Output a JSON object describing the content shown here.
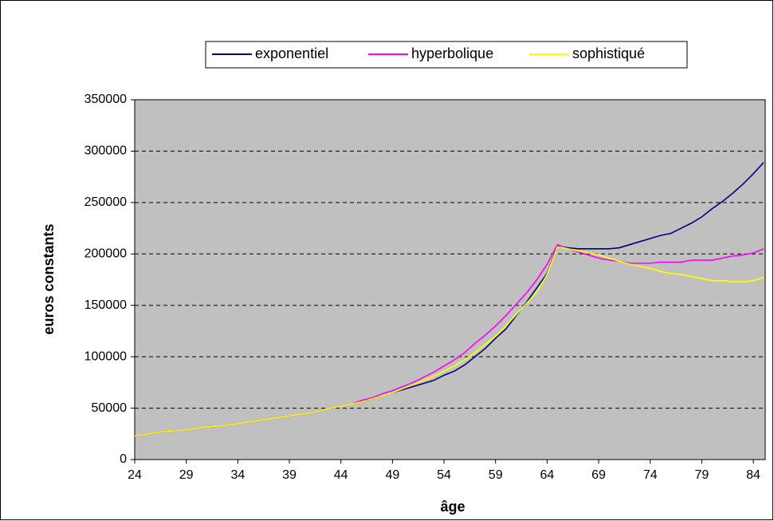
{
  "chart_data": {
    "type": "line",
    "x_label": "âge",
    "y_label": "euros constants",
    "x": [
      24,
      25,
      26,
      27,
      28,
      29,
      30,
      31,
      32,
      33,
      34,
      35,
      36,
      37,
      38,
      39,
      40,
      41,
      42,
      43,
      44,
      45,
      46,
      47,
      48,
      49,
      50,
      51,
      52,
      53,
      54,
      55,
      56,
      57,
      58,
      59,
      60,
      61,
      62,
      63,
      64,
      65,
      66,
      67,
      68,
      69,
      70,
      71,
      72,
      73,
      74,
      75,
      76,
      77,
      78,
      79,
      80,
      81,
      82,
      83,
      84,
      85
    ],
    "series": [
      {
        "name": "exponentiel",
        "color": "#000080",
        "values": [
          23000,
          24500,
          26000,
          27500,
          28000,
          29000,
          30500,
          32000,
          32500,
          33500,
          35000,
          36500,
          38000,
          39500,
          41000,
          42500,
          44000,
          45500,
          47500,
          50000,
          52000,
          54000,
          56000,
          59000,
          62000,
          65000,
          68000,
          71000,
          74000,
          77000,
          82000,
          86000,
          92000,
          100000,
          108000,
          118000,
          127000,
          140000,
          153000,
          167000,
          181000,
          208000,
          206000,
          205000,
          205000,
          205000,
          205000,
          206000,
          209000,
          212000,
          215000,
          218000,
          220000,
          225000,
          230000,
          236000,
          244000,
          251000,
          259000,
          268000,
          278000,
          289000
        ]
      },
      {
        "name": "hyperbolique",
        "color": "#ff00ff",
        "values": [
          23000,
          24500,
          26000,
          27500,
          28000,
          29000,
          30500,
          32000,
          32500,
          33500,
          35000,
          36500,
          38000,
          39500,
          41000,
          42500,
          44000,
          45500,
          47500,
          50000,
          52000,
          54000,
          57500,
          60000,
          64000,
          67000,
          71000,
          75000,
          80000,
          85000,
          91000,
          97000,
          104000,
          113000,
          121000,
          130000,
          140000,
          151000,
          162000,
          175000,
          190000,
          209000,
          205000,
          202000,
          199000,
          196000,
          194000,
          193000,
          191000,
          191000,
          191000,
          192000,
          192000,
          192000,
          194000,
          194000,
          194000,
          196000,
          198000,
          199000,
          201000,
          205000
        ]
      },
      {
        "name": "sophistiqué",
        "color": "#ffff00",
        "values": [
          23000,
          24500,
          26000,
          27500,
          28000,
          29000,
          30500,
          32000,
          32500,
          33500,
          35000,
          36500,
          38000,
          39500,
          41000,
          42500,
          44000,
          45500,
          47500,
          50000,
          52000,
          54000,
          56000,
          59000,
          62000,
          65000,
          69000,
          73000,
          77000,
          81000,
          86000,
          91000,
          97000,
          104000,
          112000,
          120000,
          130000,
          141000,
          152000,
          163000,
          180000,
          207000,
          205000,
          203000,
          201000,
          199000,
          196000,
          193000,
          190000,
          188000,
          186000,
          183000,
          181000,
          180000,
          178000,
          176000,
          174000,
          174000,
          173000,
          173000,
          174000,
          177000
        ]
      }
    ],
    "xlim": [
      24,
      85
    ],
    "xticks": [
      24,
      29,
      34,
      39,
      44,
      49,
      54,
      59,
      64,
      69,
      74,
      79,
      84
    ],
    "ylim": [
      0,
      350000
    ],
    "yticks": [
      0,
      50000,
      100000,
      150000,
      200000,
      250000,
      300000,
      350000
    ],
    "grid": true,
    "legend": "top",
    "plot_background": "#c0c0c0"
  }
}
